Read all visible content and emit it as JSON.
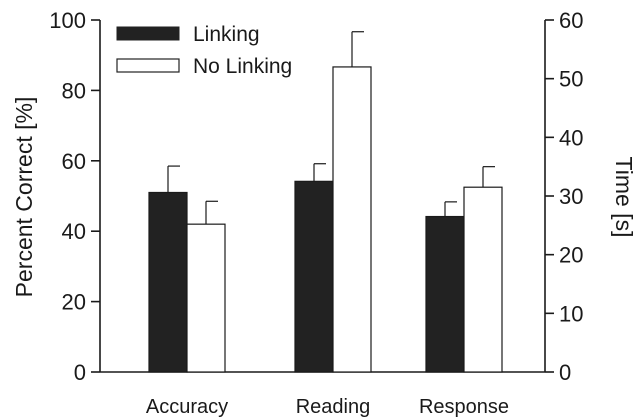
{
  "chart_data": {
    "type": "bar",
    "categories": [
      "Accuracy",
      "Reading",
      "Response"
    ],
    "series": [
      {
        "name": "Linking",
        "color": "#222222",
        "axis": [
          "left",
          "right",
          "right"
        ],
        "values": [
          51,
          32.5,
          26.5
        ],
        "errors": [
          7.5,
          3,
          2.5
        ]
      },
      {
        "name": "No Linking",
        "color": "#ffffff",
        "axis": [
          "left",
          "right",
          "right"
        ],
        "values": [
          42,
          52,
          31.5
        ],
        "errors": [
          6.5,
          6,
          3.5
        ]
      }
    ],
    "left_axis": {
      "label": "Percent Correct [%]",
      "ylim": [
        0,
        100
      ],
      "ticks": [
        "0",
        "20",
        "40",
        "60",
        "80",
        "100"
      ]
    },
    "right_axis": {
      "label": "Time [s]",
      "ylim": [
        0,
        60
      ],
      "ticks": [
        "0",
        "10",
        "20",
        "30",
        "40",
        "50",
        "60"
      ]
    },
    "grid": false,
    "legend_position": "top-left"
  }
}
